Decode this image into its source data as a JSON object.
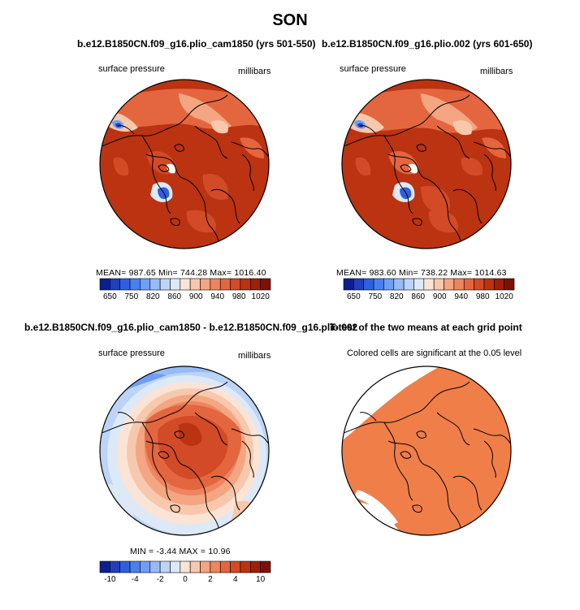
{
  "figure": {
    "main_title": "SON",
    "panel_a": {
      "case": "b.e12.B1850CN.f09_g16.plio_cam1850 (yrs 501-550)",
      "left_label": "surface pressure",
      "right_label": "millibars",
      "stats": "MEAN= 987.65   Min= 744.28   Max= 1016.40"
    },
    "panel_b": {
      "case": "b.e12.B1850CN.f09_g16.plio.002 (yrs 601-650)",
      "left_label": "surface pressure",
      "right_label": "millibars",
      "stats": "MEAN= 983.60   Min= 738.22   Max= 1014.63"
    },
    "diff_title": "b.e12.B1850CN.f09_g16.plio_cam1850 - b.e12.B1850CN.f09_g16.plio.002",
    "ttest_title": "T-test of the two means at each grid point",
    "panel_c": {
      "left_label": "surface pressure",
      "right_label": "millibars",
      "stats": "MIN =  -3.44  MAX =  10.96"
    },
    "panel_d": {
      "label": "Colored cells are significant at the 0.05 level"
    }
  },
  "chart_data": [
    {
      "type": "heatmap",
      "projection": "north polar stereographic",
      "variable": "surface pressure",
      "units": "millibars",
      "case": "b.e12.B1850CN.f09_g16.plio_cam1850 (yrs 501-550)",
      "stats": {
        "mean": 987.65,
        "min": 744.28,
        "max": 1016.4
      },
      "colorbar": {
        "tick_labels": [
          "650",
          "750",
          "820",
          "860",
          "900",
          "940",
          "980",
          "1020"
        ],
        "colors": [
          "#0b1f8f",
          "#1f3fbf",
          "#2e5fe0",
          "#4a7ff0",
          "#6f9ef6",
          "#97bbf8",
          "#bcd4f8",
          "#dde9f7",
          "#fbe4d6",
          "#f8c8ad",
          "#f4a582",
          "#ee855e",
          "#e4663f",
          "#d24a26",
          "#bb3311",
          "#9e2008",
          "#7f1005"
        ]
      }
    },
    {
      "type": "heatmap",
      "projection": "north polar stereographic",
      "variable": "surface pressure",
      "units": "millibars",
      "case": "b.e12.B1850CN.f09_g16.plio.002 (yrs 601-650)",
      "stats": {
        "mean": 983.6,
        "min": 738.22,
        "max": 1014.63
      },
      "colorbar": {
        "tick_labels": [
          "650",
          "750",
          "820",
          "860",
          "900",
          "940",
          "980",
          "1020"
        ],
        "colors": [
          "#0b1f8f",
          "#1f3fbf",
          "#2e5fe0",
          "#4a7ff0",
          "#6f9ef6",
          "#97bbf8",
          "#bcd4f8",
          "#dde9f7",
          "#fbe4d6",
          "#f8c8ad",
          "#f4a582",
          "#ee855e",
          "#e4663f",
          "#d24a26",
          "#bb3311",
          "#9e2008",
          "#7f1005"
        ]
      }
    },
    {
      "type": "heatmap",
      "projection": "north polar stereographic",
      "variable": "surface pressure",
      "units": "millibars",
      "case": "b.e12.B1850CN.f09_g16.plio_cam1850 - b.e12.B1850CN.f09_g16.plio.002",
      "stats": {
        "min": -3.44,
        "max": 10.96
      },
      "colorbar": {
        "tick_labels": [
          "-10",
          "-4",
          "-2",
          "0",
          "2",
          "4",
          "10"
        ],
        "colors": [
          "#0b1f8f",
          "#1f3fbf",
          "#2e5fe0",
          "#4a7ff0",
          "#6f9ef6",
          "#97bbf8",
          "#bcd4f8",
          "#dde9f7",
          "#fbe4d6",
          "#f8c8ad",
          "#f4a582",
          "#ee855e",
          "#e4663f",
          "#d24a26",
          "#bb3311",
          "#9e2008",
          "#7f1005"
        ]
      }
    },
    {
      "type": "heatmap",
      "projection": "north polar stereographic",
      "title": "T-test of the two means at each grid point",
      "note": "Colored cells are significant at the 0.05 level",
      "significant_color": "#f07e48"
    }
  ]
}
